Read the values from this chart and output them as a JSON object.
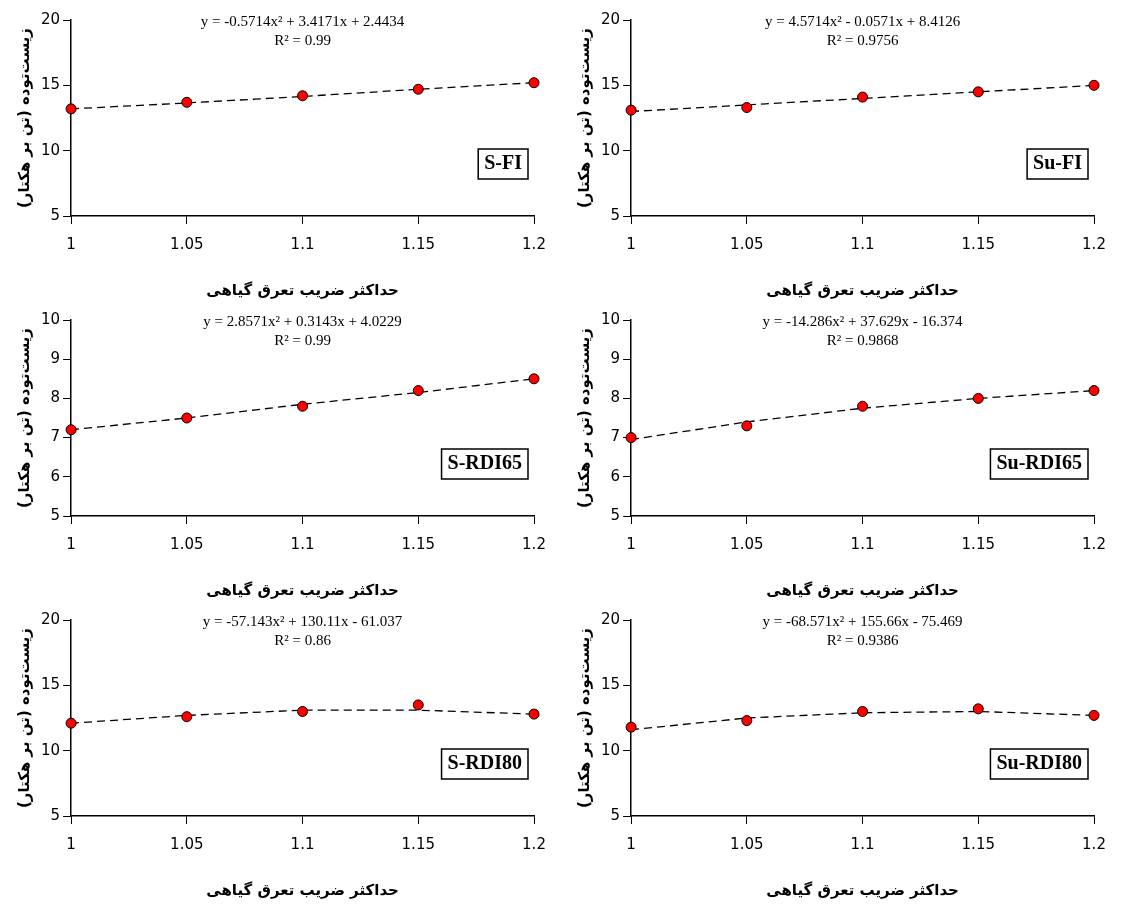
{
  "chart_data": [
    {
      "type": "scatter",
      "x": [
        1,
        1.05,
        1.1,
        1.15,
        1.2
      ],
      "xlim": [
        1,
        1.2
      ],
      "xticks": [
        1,
        1.05,
        1.1,
        1.15,
        1.2
      ],
      "ylim": [
        5,
        20
      ],
      "yticks": [
        5,
        10,
        15,
        20
      ],
      "xlabel": "حداکثر ضریب تعرق گیاهی",
      "ylabel": "زیست‌توده (تن بر هکتار)",
      "series": [
        {
          "type": "scatter",
          "color": "#ff0000",
          "marker": "circle",
          "values": [
            13.2,
            13.7,
            14.2,
            14.7,
            15.2
          ]
        },
        {
          "type": "line",
          "color": "#000000",
          "marker": "none",
          "line_style": "dashed",
          "values": [
            13.2,
            13.65,
            14.15,
            14.7,
            15.2
          ]
        }
      ],
      "annotations": [
        "y = -0.5714x² + 3.4171x + 2.4434",
        "R² = 0.99",
        "S-FI"
      ]
    },
    {
      "type": "scatter",
      "x": [
        1,
        1.05,
        1.1,
        1.15,
        1.2
      ],
      "xlim": [
        1,
        1.2
      ],
      "xticks": [
        1,
        1.05,
        1.1,
        1.15,
        1.2
      ],
      "ylim": [
        5,
        20
      ],
      "yticks": [
        5,
        10,
        15,
        20
      ],
      "xlabel": "حداکثر ضریب تعرق گیاهی",
      "ylabel": "زیست‌توده (تن بر هکتار)",
      "series": [
        {
          "type": "scatter",
          "color": "#ff0000",
          "marker": "circle",
          "values": [
            13.1,
            13.3,
            14.1,
            14.5,
            15.0
          ]
        },
        {
          "type": "line",
          "color": "#000000",
          "marker": "none",
          "line_style": "dashed",
          "values": [
            13.0,
            13.5,
            14.0,
            14.5,
            15.0
          ]
        }
      ],
      "annotations": [
        "y = 4.5714x² - 0.0571x + 8.4126",
        "R² = 0.9756",
        "Su-FI"
      ]
    },
    {
      "type": "scatter",
      "x": [
        1,
        1.05,
        1.1,
        1.15,
        1.2
      ],
      "xlim": [
        1,
        1.2
      ],
      "xticks": [
        1,
        1.05,
        1.1,
        1.15,
        1.2
      ],
      "ylim": [
        5,
        10
      ],
      "yticks": [
        5,
        6,
        7,
        8,
        9,
        10
      ],
      "xlabel": "حداکثر ضریب تعرق گیاهی",
      "ylabel": "زیست‌توده (تن بر هکتار)",
      "series": [
        {
          "type": "scatter",
          "color": "#ff0000",
          "marker": "circle",
          "values": [
            7.2,
            7.5,
            7.8,
            8.2,
            8.5
          ]
        },
        {
          "type": "line",
          "color": "#000000",
          "marker": "none",
          "line_style": "dashed",
          "values": [
            7.2,
            7.5,
            7.85,
            8.15,
            8.5
          ]
        }
      ],
      "annotations": [
        "y = 2.8571x² + 0.3143x + 4.0229",
        "R² = 0.99",
        "S-RDI65"
      ]
    },
    {
      "type": "scatter",
      "x": [
        1,
        1.05,
        1.1,
        1.15,
        1.2
      ],
      "xlim": [
        1,
        1.2
      ],
      "xticks": [
        1,
        1.05,
        1.1,
        1.15,
        1.2
      ],
      "ylim": [
        5,
        10
      ],
      "yticks": [
        5,
        6,
        7,
        8,
        9,
        10
      ],
      "xlabel": "حداکثر ضریب تعرق گیاهی",
      "ylabel": "زیست‌توده (تن بر هکتار)",
      "series": [
        {
          "type": "scatter",
          "color": "#ff0000",
          "marker": "circle",
          "values": [
            7.0,
            7.3,
            7.8,
            8.0,
            8.2
          ]
        },
        {
          "type": "line",
          "color": "#000000",
          "marker": "none",
          "line_style": "dashed",
          "values": [
            6.95,
            7.4,
            7.75,
            8.0,
            8.2
          ]
        }
      ],
      "annotations": [
        "y = -14.286x² + 37.629x - 16.374",
        "R² = 0.9868",
        "Su-RDI65"
      ]
    },
    {
      "type": "scatter",
      "x": [
        1,
        1.05,
        1.1,
        1.15,
        1.2
      ],
      "xlim": [
        1,
        1.2
      ],
      "xticks": [
        1,
        1.05,
        1.1,
        1.15,
        1.2
      ],
      "ylim": [
        5,
        20
      ],
      "yticks": [
        5,
        10,
        15,
        20
      ],
      "xlabel": "حداکثر ضریب تعرق گیاهی",
      "ylabel": "زیست‌توده (تن بر هکتار)",
      "series": [
        {
          "type": "scatter",
          "color": "#ff0000",
          "marker": "circle",
          "values": [
            12.1,
            12.6,
            13.0,
            13.5,
            12.8
          ]
        },
        {
          "type": "line",
          "color": "#000000",
          "marker": "none",
          "line_style": "dashed",
          "values": [
            12.1,
            12.7,
            13.1,
            13.1,
            12.8
          ]
        }
      ],
      "annotations": [
        "y = -57.143x² + 130.11x - 61.037",
        "R² = 0.86",
        "S-RDI80"
      ]
    },
    {
      "type": "scatter",
      "x": [
        1,
        1.05,
        1.1,
        1.15,
        1.2
      ],
      "xlim": [
        1,
        1.2
      ],
      "xticks": [
        1,
        1.05,
        1.1,
        1.15,
        1.2
      ],
      "ylim": [
        5,
        20
      ],
      "yticks": [
        5,
        10,
        15,
        20
      ],
      "xlabel": "حداکثر ضریب تعرق گیاهی",
      "ylabel": "زیست‌توده (تن بر هکتار)",
      "series": [
        {
          "type": "scatter",
          "color": "#ff0000",
          "marker": "circle",
          "values": [
            11.8,
            12.3,
            13.0,
            13.2,
            12.7
          ]
        },
        {
          "type": "line",
          "color": "#000000",
          "marker": "none",
          "line_style": "dashed",
          "values": [
            11.6,
            12.5,
            12.9,
            13.0,
            12.7
          ]
        }
      ],
      "annotations": [
        "y = -68.571x² + 155.66x - 75.469",
        "R² = 0.9386",
        "Su-RDI80"
      ]
    }
  ]
}
